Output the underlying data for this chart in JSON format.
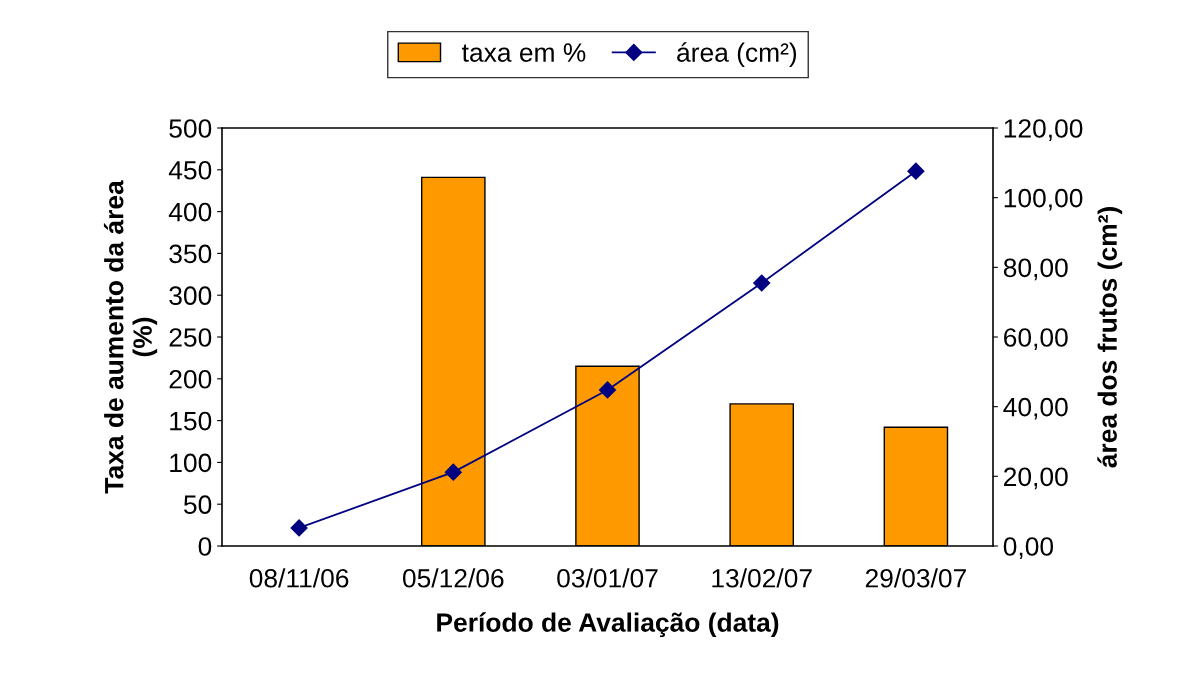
{
  "chart_data": {
    "type": "bar",
    "categories": [
      "08/11/06",
      "05/12/06",
      "03/01/07",
      "13/02/07",
      "29/03/07"
    ],
    "xlabel": "Período de Avaliação (data)",
    "ylabel": "Taxa de aumento da área\n(%)",
    "y2label": "área dos frutos (cm²)",
    "series": [
      {
        "name": "taxa em %",
        "color": "#ff9900",
        "values": [
          null,
          441,
          215,
          170,
          142
        ]
      },
      {
        "name": "área (cm²)",
        "type": "line",
        "axis": "y2",
        "color": "#000080",
        "marker": "diamond",
        "values": [
          5.2,
          21.2,
          44.8,
          75.5,
          107.6
        ]
      }
    ],
    "ylim": [
      0,
      500
    ],
    "yticks": [
      0,
      50,
      100,
      150,
      200,
      250,
      300,
      350,
      400,
      450,
      500
    ],
    "y2lim": [
      0,
      120
    ],
    "y2ticks": [
      {
        "value": 0,
        "label": "0,00"
      },
      {
        "value": 20,
        "label": "20,00"
      },
      {
        "value": 40,
        "label": "40,00"
      },
      {
        "value": 60,
        "label": "60,00"
      },
      {
        "value": 80,
        "label": "80,00"
      },
      {
        "value": 100,
        "label": "100,00"
      },
      {
        "value": 120,
        "label": "120,00"
      }
    ],
    "grid": false,
    "legend": "top"
  }
}
